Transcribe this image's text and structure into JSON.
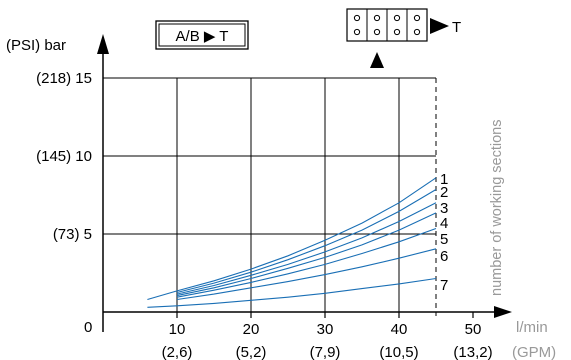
{
  "chart_data": {
    "type": "line",
    "title": "",
    "header": {
      "path_label": "A/B ▶ T",
      "tank_label": "T"
    },
    "y_axis": {
      "unit_label": "(PSI) bar",
      "ticks": [
        {
          "value": 5,
          "label": "(73) 5"
        },
        {
          "value": 10,
          "label": "(145) 10"
        },
        {
          "value": 15,
          "label": "(218) 15"
        }
      ],
      "range": [
        0,
        15
      ]
    },
    "x_axis": {
      "unit_label": "l/min",
      "secondary_unit_label": "(GPM)",
      "origin_label": "0",
      "ticks": [
        {
          "value": 10,
          "label": "10",
          "secondary": "(2,6)"
        },
        {
          "value": 20,
          "label": "20",
          "secondary": "(5,2)"
        },
        {
          "value": 30,
          "label": "30",
          "secondary": "(7,9)"
        },
        {
          "value": 40,
          "label": "40",
          "secondary": "(10,5)"
        },
        {
          "value": 50,
          "label": "50",
          "secondary": "(13,2)"
        }
      ],
      "range": [
        0,
        50
      ],
      "limit_line": 45
    },
    "right_label": "number of working sections",
    "grid": true,
    "series": [
      {
        "name": "1",
        "x": [
          6,
          10,
          15,
          20,
          25,
          30,
          35,
          40,
          45
        ],
        "y": [
          0.8,
          1.35,
          2.0,
          2.75,
          3.6,
          4.6,
          5.7,
          7.0,
          8.6
        ]
      },
      {
        "name": "2",
        "x": [
          10,
          15,
          20,
          25,
          30,
          35,
          40,
          45
        ],
        "y": [
          1.25,
          1.85,
          2.55,
          3.35,
          4.25,
          5.25,
          6.45,
          7.85
        ]
      },
      {
        "name": "3",
        "x": [
          10,
          15,
          20,
          25,
          30,
          35,
          40,
          45
        ],
        "y": [
          1.15,
          1.7,
          2.35,
          3.05,
          3.85,
          4.75,
          5.8,
          7.0
        ]
      },
      {
        "name": "4",
        "x": [
          10,
          15,
          20,
          25,
          30,
          35,
          40,
          45
        ],
        "y": [
          1.05,
          1.55,
          2.15,
          2.8,
          3.5,
          4.3,
          5.25,
          6.35
        ]
      },
      {
        "name": "5",
        "x": [
          10,
          15,
          20,
          25,
          30,
          35,
          40,
          45
        ],
        "y": [
          0.95,
          1.4,
          1.9,
          2.45,
          3.05,
          3.75,
          4.5,
          5.35
        ]
      },
      {
        "name": "6",
        "x": [
          10,
          15,
          20,
          25,
          30,
          35,
          40,
          45
        ],
        "y": [
          0.8,
          1.15,
          1.55,
          1.95,
          2.4,
          2.9,
          3.45,
          4.05
        ]
      },
      {
        "name": "7",
        "x": [
          6,
          10,
          15,
          20,
          25,
          30,
          35,
          40,
          45
        ],
        "y": [
          0.3,
          0.4,
          0.55,
          0.75,
          0.95,
          1.2,
          1.5,
          1.8,
          2.15
        ]
      }
    ],
    "colors": {
      "series": "#1a6fb5",
      "axis": "#000000",
      "grid": "#000000",
      "secondary_text": "#999999"
    }
  }
}
